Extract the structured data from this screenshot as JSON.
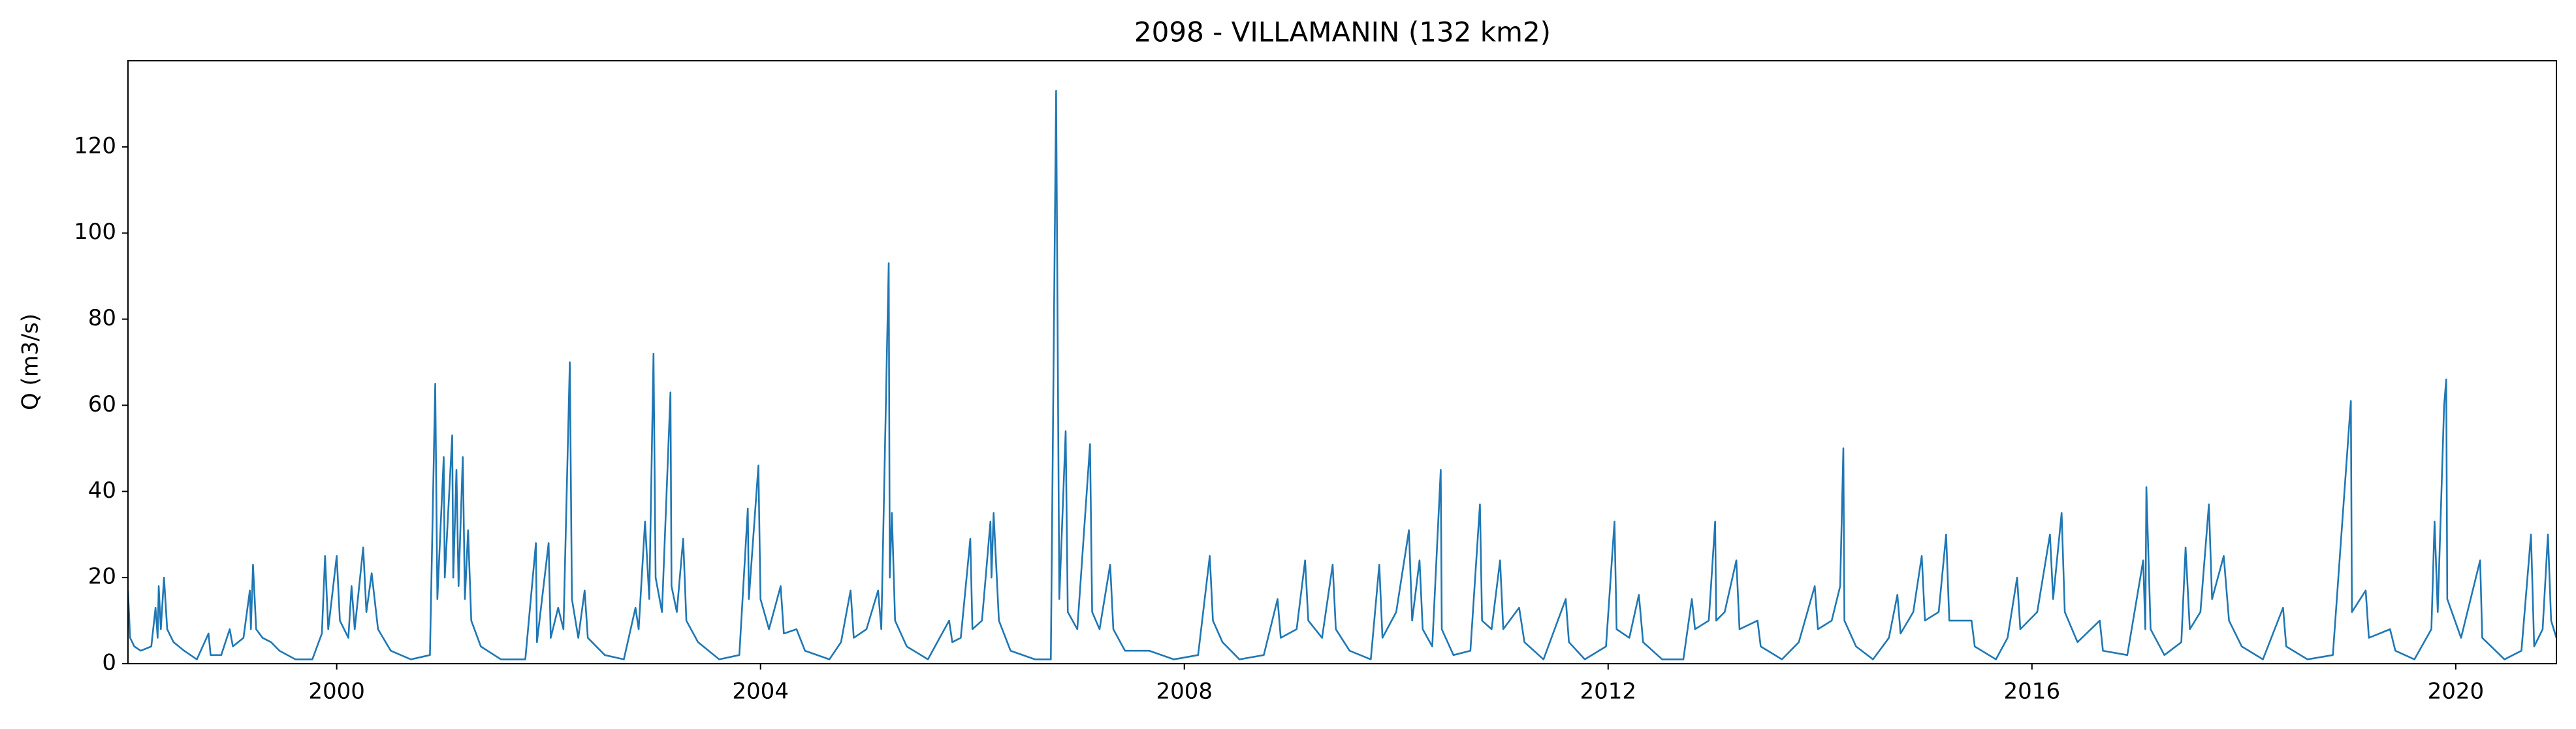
{
  "chart_data": {
    "type": "line",
    "title": "2098 - VILLAMANIN (132 km2)",
    "y_label": "Q (m3/s)",
    "color": "#1f77b4",
    "xlim": [
      1998.03,
      2020.95
    ],
    "ylim": [
      0,
      140
    ],
    "xticks": [
      2000,
      2004,
      2008,
      2012,
      2016,
      2020
    ],
    "yticks": [
      0,
      20,
      40,
      60,
      80,
      100,
      120
    ],
    "x": [
      1998.03,
      1998.05,
      1998.09,
      1998.15,
      1998.25,
      1998.29,
      1998.31,
      1998.32,
      1998.34,
      1998.37,
      1998.4,
      1998.46,
      1998.56,
      1998.68,
      1998.79,
      1998.81,
      1998.91,
      1998.99,
      1999.02,
      1999.12,
      1999.18,
      1999.19,
      1999.21,
      1999.24,
      1999.3,
      1999.38,
      1999.46,
      1999.61,
      1999.77,
      1999.86,
      1999.89,
      1999.92,
      2000.0,
      2000.03,
      2000.11,
      2000.14,
      2000.17,
      2000.25,
      2000.28,
      2000.33,
      2000.39,
      2000.51,
      2000.7,
      2000.88,
      2000.93,
      2000.95,
      2001.01,
      2001.02,
      2001.09,
      2001.1,
      2001.13,
      2001.15,
      2001.19,
      2001.21,
      2001.24,
      2001.27,
      2001.36,
      2001.55,
      2001.78,
      2001.88,
      2001.89,
      2002.0,
      2002.02,
      2002.09,
      2002.14,
      2002.2,
      2002.22,
      2002.28,
      2002.34,
      2002.37,
      2002.53,
      2002.71,
      2002.82,
      2002.85,
      2002.91,
      2002.95,
      2002.99,
      2003.01,
      2003.07,
      2003.15,
      2003.16,
      2003.21,
      2003.27,
      2003.3,
      2003.41,
      2003.61,
      2003.8,
      2003.88,
      2003.89,
      2003.98,
      2004.0,
      2004.08,
      2004.19,
      2004.22,
      2004.34,
      2004.42,
      2004.65,
      2004.76,
      2004.85,
      2004.88,
      2005.0,
      2005.11,
      2005.14,
      2005.21,
      2005.22,
      2005.24,
      2005.27,
      2005.38,
      2005.58,
      2005.78,
      2005.81,
      2005.89,
      2005.98,
      2006.0,
      2006.09,
      2006.17,
      2006.18,
      2006.2,
      2006.25,
      2006.36,
      2006.59,
      2006.74,
      2006.79,
      2006.82,
      2006.88,
      2006.9,
      2006.99,
      2007.11,
      2007.13,
      2007.2,
      2007.3,
      2007.33,
      2007.44,
      2007.67,
      2007.9,
      2008.13,
      2008.24,
      2008.27,
      2008.36,
      2008.52,
      2008.75,
      2008.88,
      2008.91,
      2009.06,
      2009.14,
      2009.17,
      2009.3,
      2009.4,
      2009.43,
      2009.56,
      2009.76,
      2009.84,
      2009.87,
      2010.0,
      2010.12,
      2010.15,
      2010.22,
      2010.25,
      2010.34,
      2010.42,
      2010.43,
      2010.54,
      2010.7,
      2010.79,
      2010.81,
      2010.9,
      2010.98,
      2011.01,
      2011.16,
      2011.21,
      2011.39,
      2011.6,
      2011.63,
      2011.78,
      2011.98,
      2012.06,
      2012.08,
      2012.2,
      2012.29,
      2012.33,
      2012.51,
      2012.71,
      2012.79,
      2012.82,
      2012.95,
      2013.01,
      2013.02,
      2013.1,
      2013.21,
      2013.24,
      2013.41,
      2013.44,
      2013.64,
      2013.8,
      2013.95,
      2013.98,
      2014.11,
      2014.19,
      2014.22,
      2014.23,
      2014.34,
      2014.5,
      2014.65,
      2014.73,
      2014.76,
      2014.88,
      2014.96,
      2014.99,
      2015.12,
      2015.19,
      2015.22,
      2015.43,
      2015.46,
      2015.66,
      2015.77,
      2015.86,
      2015.89,
      2016.05,
      2016.17,
      2016.2,
      2016.28,
      2016.31,
      2016.43,
      2016.64,
      2016.67,
      2016.9,
      2017.05,
      2017.07,
      2017.08,
      2017.12,
      2017.25,
      2017.41,
      2017.45,
      2017.49,
      2017.59,
      2017.67,
      2017.7,
      2017.81,
      2017.86,
      2017.98,
      2018.18,
      2018.37,
      2018.4,
      2018.6,
      2018.84,
      2019.01,
      2019.02,
      2019.15,
      2019.18,
      2019.38,
      2019.43,
      2019.61,
      2019.77,
      2019.8,
      2019.83,
      2019.89,
      2019.91,
      2019.92,
      2020.05,
      2020.23,
      2020.25,
      2020.46,
      2020.62,
      2020.71,
      2020.74,
      2020.82,
      2020.87,
      2020.9,
      2020.95
    ],
    "values": [
      17,
      6,
      4,
      3,
      4,
      13,
      6,
      18,
      8,
      20,
      8,
      5,
      3,
      1,
      7,
      2,
      2,
      8,
      4,
      6,
      17,
      8,
      23,
      8,
      6,
      5,
      3,
      1,
      1,
      7,
      25,
      8,
      25,
      10,
      6,
      18,
      8,
      27,
      12,
      21,
      8,
      3,
      1,
      2,
      65,
      15,
      48,
      20,
      53,
      20,
      45,
      18,
      48,
      15,
      31,
      10,
      4,
      1,
      1,
      28,
      5,
      28,
      6,
      13,
      8,
      70,
      15,
      6,
      17,
      6,
      2,
      1,
      13,
      8,
      33,
      15,
      72,
      20,
      12,
      63,
      18,
      12,
      29,
      10,
      5,
      1,
      2,
      36,
      15,
      46,
      15,
      8,
      18,
      7,
      8,
      3,
      1,
      5,
      17,
      6,
      8,
      17,
      8,
      93,
      20,
      35,
      10,
      4,
      1,
      10,
      5,
      6,
      29,
      8,
      10,
      33,
      20,
      35,
      10,
      3,
      1,
      1,
      133,
      15,
      54,
      12,
      8,
      51,
      12,
      8,
      23,
      8,
      3,
      3,
      1,
      2,
      25,
      10,
      5,
      1,
      2,
      15,
      6,
      8,
      24,
      10,
      6,
      23,
      8,
      3,
      1,
      23,
      6,
      12,
      31,
      10,
      24,
      8,
      4,
      45,
      8,
      2,
      3,
      37,
      10,
      8,
      24,
      8,
      13,
      5,
      1,
      15,
      5,
      1,
      4,
      33,
      8,
      6,
      16,
      5,
      1,
      1,
      15,
      8,
      10,
      33,
      10,
      12,
      24,
      8,
      10,
      4,
      1,
      5,
      18,
      8,
      10,
      18,
      50,
      10,
      4,
      1,
      6,
      16,
      7,
      12,
      25,
      10,
      12,
      30,
      10,
      10,
      4,
      1,
      6,
      20,
      8,
      12,
      30,
      15,
      35,
      12,
      5,
      10,
      3,
      2,
      24,
      8,
      41,
      8,
      2,
      5,
      27,
      8,
      12,
      37,
      15,
      25,
      10,
      4,
      1,
      13,
      4,
      1,
      2,
      61,
      12,
      17,
      6,
      8,
      3,
      1,
      8,
      33,
      12,
      60,
      66,
      15,
      6,
      24,
      6,
      1,
      3,
      30,
      4,
      8,
      30,
      10,
      6
    ]
  }
}
